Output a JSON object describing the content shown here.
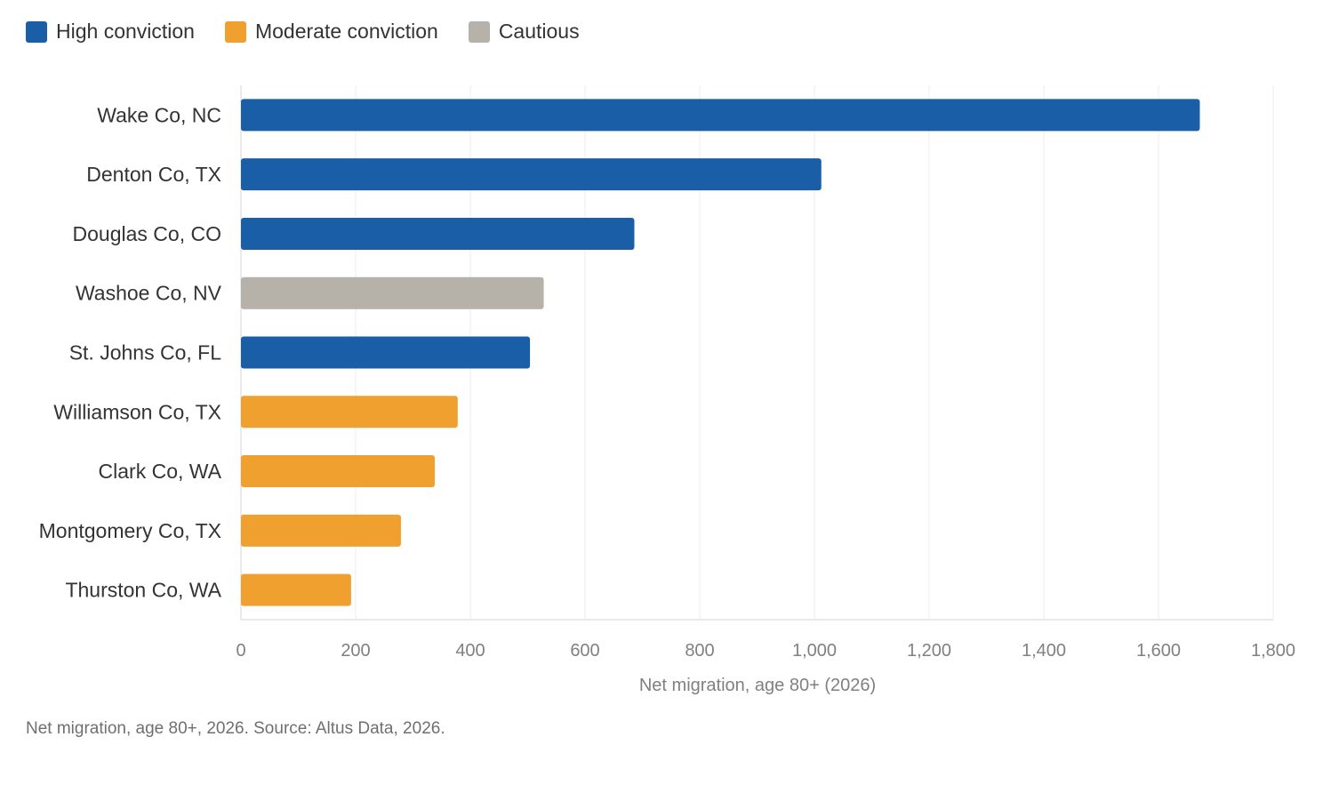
{
  "legend": [
    {
      "label": "High conviction",
      "color": "#1b5ea8"
    },
    {
      "label": "Moderate conviction",
      "color": "#f0a02e"
    },
    {
      "label": "Cautious",
      "color": "#b6b2a9"
    }
  ],
  "chart_data": {
    "type": "bar",
    "orientation": "horizontal",
    "categories": [
      "Wake Co, NC",
      "Denton Co, TX",
      "Douglas Co, CO",
      "Washoe Co, NV",
      "St. Johns Co, FL",
      "Williamson Co, TX",
      "Clark Co, WA",
      "Montgomery Co, TX",
      "Thurston Co, WA"
    ],
    "values": [
      1672,
      1012,
      686,
      528,
      504,
      378,
      338,
      279,
      192
    ],
    "groups": [
      "High conviction",
      "High conviction",
      "High conviction",
      "Cautious",
      "High conviction",
      "Moderate conviction",
      "Moderate conviction",
      "Moderate conviction",
      "Moderate conviction"
    ],
    "xlabel": "Net migration, age 80+ (2026)",
    "xlim": [
      0,
      1800
    ],
    "xticks": [
      0,
      200,
      400,
      600,
      800,
      1000,
      1200,
      1400,
      1600,
      1800
    ],
    "xtick_labels": [
      "0",
      "200",
      "400",
      "600",
      "800",
      "1,000",
      "1,200",
      "1,400",
      "1,600",
      "1,800"
    ],
    "grid": true,
    "legend_position": "top-left"
  },
  "caption": "Net migration, age 80+, 2026. Source: Altus Data, 2026."
}
